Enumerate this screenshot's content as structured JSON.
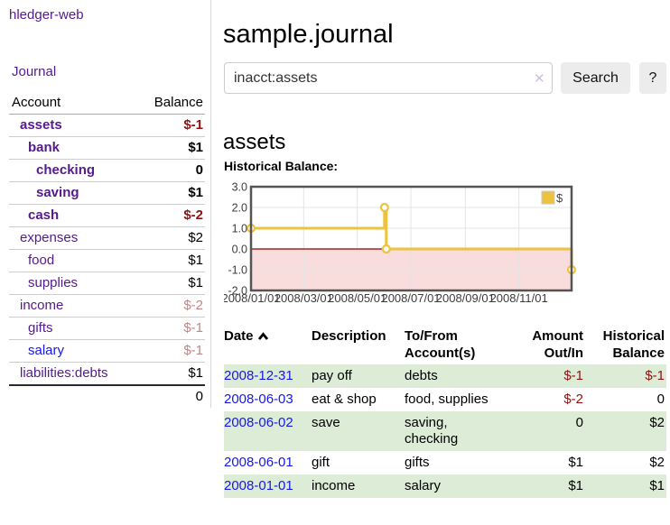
{
  "sidebar": {
    "brand": "hledger-web",
    "nav": {
      "journal": "Journal"
    },
    "accounts_table": {
      "headers": {
        "account": "Account",
        "balance": "Balance"
      },
      "rows": [
        {
          "name": "assets",
          "balance": "$-1"
        },
        {
          "name": "bank",
          "balance": "$1"
        },
        {
          "name": "checking",
          "balance": "0"
        },
        {
          "name": "saving",
          "balance": "$1"
        },
        {
          "name": "cash",
          "balance": "$-2"
        },
        {
          "name": "expenses",
          "balance": "$2"
        },
        {
          "name": "food",
          "balance": "$1"
        },
        {
          "name": "supplies",
          "balance": "$1"
        },
        {
          "name": "income",
          "balance": "$-2"
        },
        {
          "name": "gifts",
          "balance": "$-1"
        },
        {
          "name": "salary",
          "balance": "$-1"
        },
        {
          "name": "liabilities:debts",
          "balance": "$1"
        }
      ],
      "total": "0"
    }
  },
  "header": {
    "title": "sample.journal"
  },
  "search": {
    "query": "inacct:assets",
    "clear_icon": "✕",
    "search_label": "Search",
    "help_label": "?"
  },
  "main": {
    "account_title": "assets",
    "chart_label": "Historical Balance:",
    "register": {
      "headers": {
        "date": "Date",
        "description": "Description",
        "accounts": "To/From Account(s)",
        "amount": "Amount Out/In",
        "balance": "Historical Balance"
      },
      "rows": [
        {
          "date": "2008-12-31",
          "description": "pay off",
          "accounts": "debts",
          "amount": "$-1",
          "balance": "$-1"
        },
        {
          "date": "2008-06-03",
          "description": "eat & shop",
          "accounts": "food, supplies",
          "amount": "$-2",
          "balance": "0"
        },
        {
          "date": "2008-06-02",
          "description": "save",
          "accounts": "saving, checking",
          "amount": "0",
          "balance": "$2"
        },
        {
          "date": "2008-06-01",
          "description": "gift",
          "accounts": "gifts",
          "amount": "$1",
          "balance": "$2"
        },
        {
          "date": "2008-01-01",
          "description": "income",
          "accounts": "salary",
          "amount": "$1",
          "balance": "$1"
        }
      ]
    }
  },
  "chart_data": {
    "type": "line",
    "title": "Historical Balance",
    "step": true,
    "series": [
      {
        "name": "$",
        "color": "#edc240",
        "points": [
          [
            "2008-01-01",
            1
          ],
          [
            "2008-06-01",
            2
          ],
          [
            "2008-06-03",
            0
          ],
          [
            "2008-12-31",
            -1
          ]
        ]
      }
    ],
    "x_range": [
      "2008-01-01",
      "2008-12-31"
    ],
    "ylim": [
      -2,
      3
    ],
    "x_ticks": [
      "2008/01/01",
      "2008/03/01",
      "2008/05/01",
      "2008/07/01",
      "2008/09/01",
      "2008/11/01"
    ],
    "y_ticks": [
      3.0,
      2.0,
      1.0,
      0.0,
      -1.0,
      -2.0
    ],
    "grid": true,
    "legend_position": "top-right",
    "legend": "$",
    "negative_fill": "#f9dcdc",
    "zero_line_color": "#8b0000",
    "border_color": "#545454",
    "grid_color": "#e4e4e4"
  },
  "colors": {
    "visited_link_purple": "#551a8b",
    "link_blue": "#1717e6",
    "negative_red": "#8f1212",
    "soft_negative_rose": "#c48484",
    "row_stripe_green": "#ddecd7",
    "chart_line_yellow": "#edc240",
    "button_gray": "#ececec"
  }
}
